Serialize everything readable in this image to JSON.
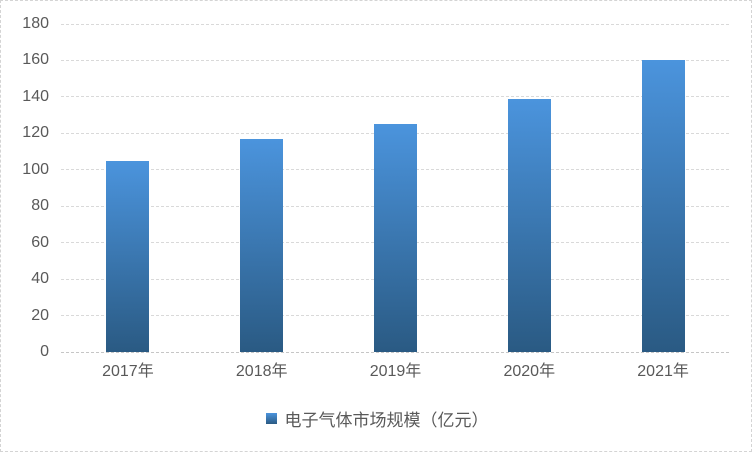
{
  "chart_data": {
    "type": "bar",
    "title": "",
    "categories": [
      "2017年",
      "2018年",
      "2019年",
      "2020年",
      "2021年"
    ],
    "series": [
      {
        "name": "电子气体市场规模（亿元）",
        "values": [
          105,
          117,
          125,
          139,
          160
        ]
      }
    ],
    "xlabel": "",
    "ylabel": "",
    "ylim": [
      0,
      180
    ],
    "ytick_step": 20,
    "grid": "horizontal",
    "legend_position": "bottom",
    "legend_label": "电子气体市场规模（亿元）"
  },
  "colors": {
    "bar_gradient_top": "#4b94dd",
    "bar_gradient_bottom": "#2a5a83",
    "gridline": "#d9d9d9",
    "axis_line": "#c6c6c6",
    "text": "#595959",
    "background": "#ffffff",
    "border": "#d4d4d4"
  }
}
